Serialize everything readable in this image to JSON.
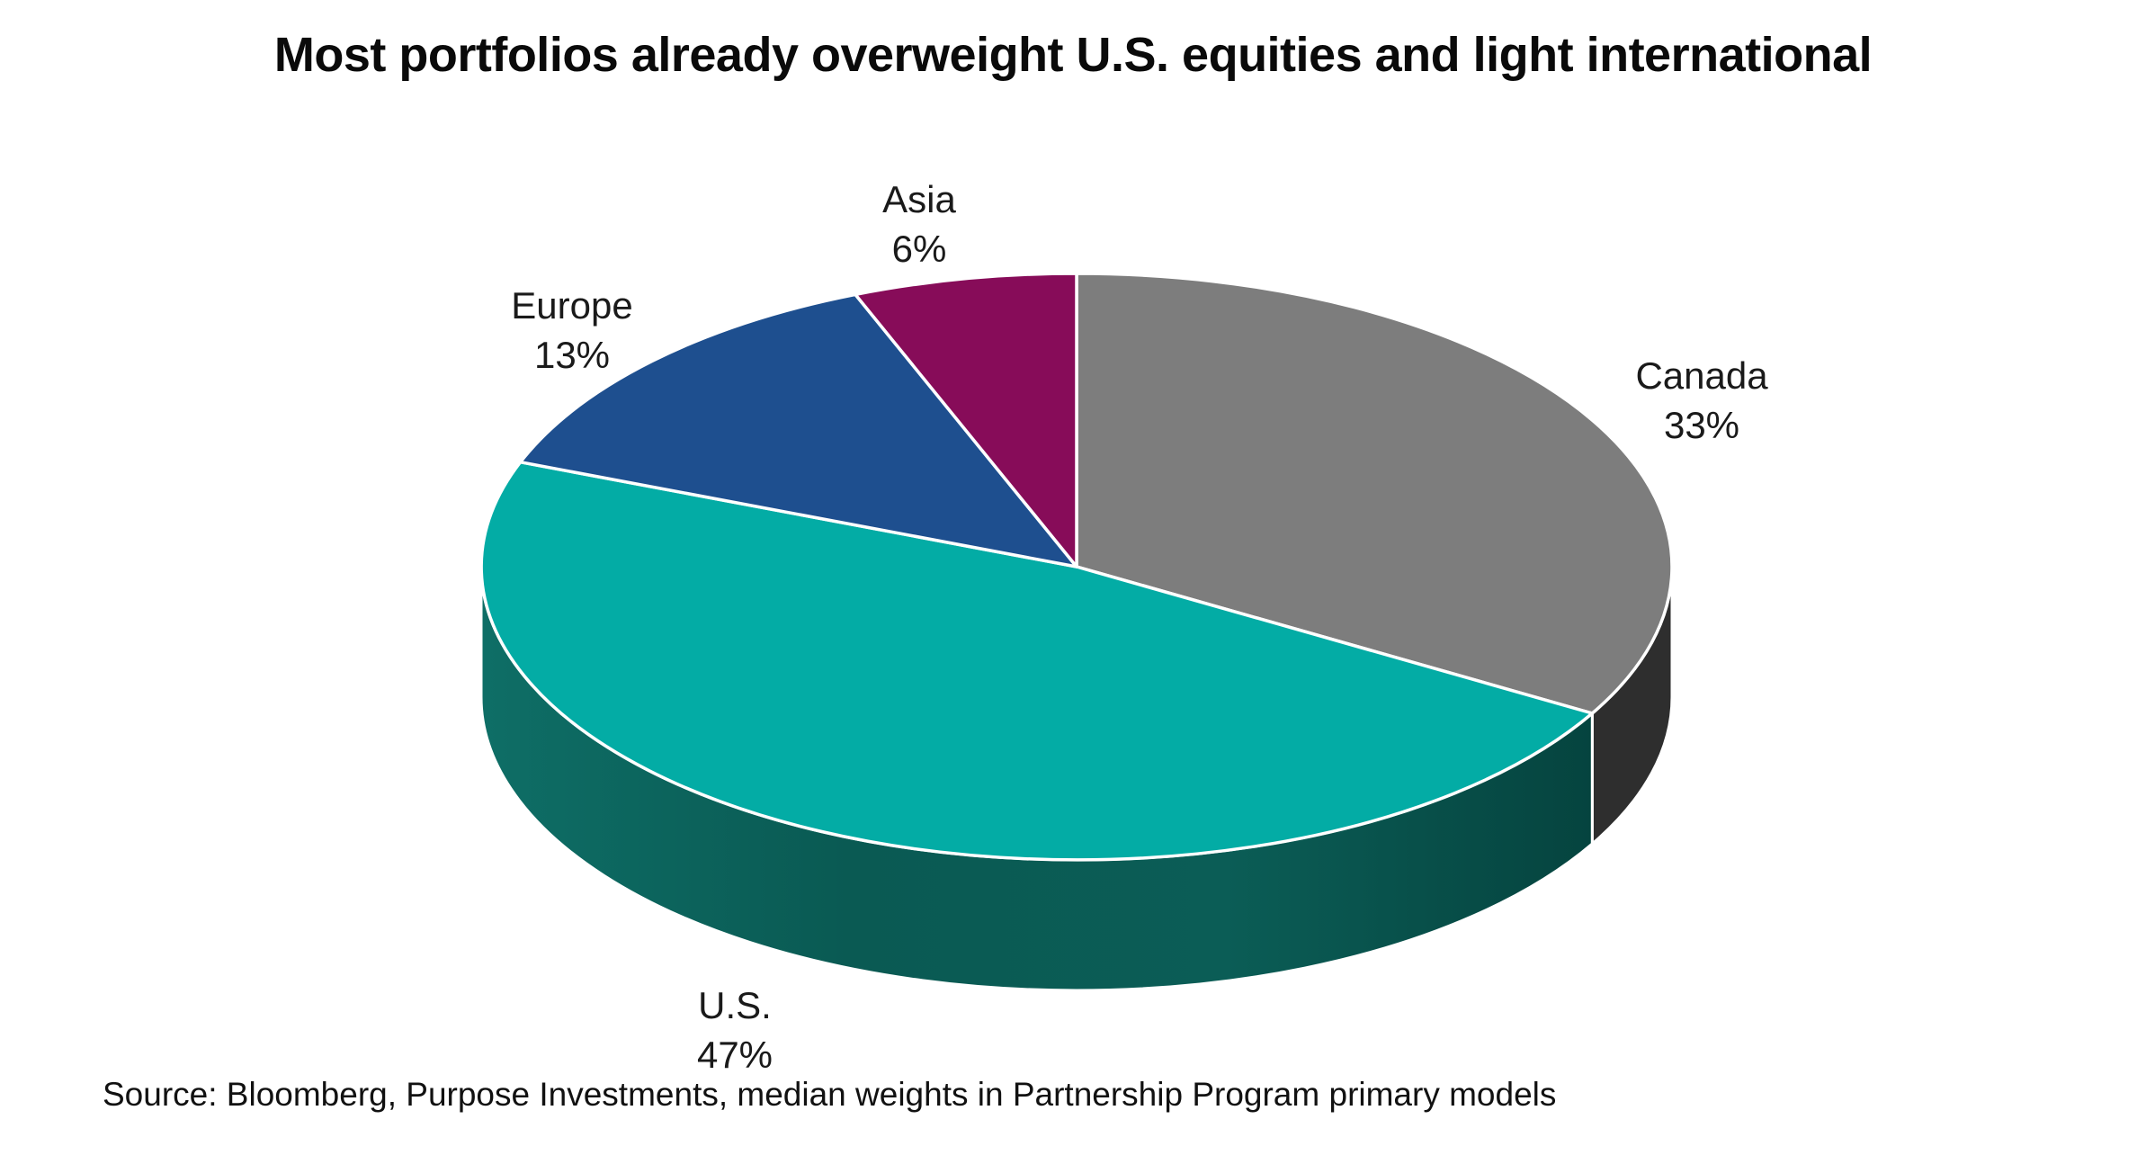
{
  "chart_data": {
    "type": "pie",
    "style": "3d-exploded-none",
    "title": "Most portfolios already overweight U.S. equities and light international",
    "source_note": "Source: Bloomberg, Purpose Investments, median weights in Partnership Program primary models",
    "start_angle_deg": 0,
    "direction": "clockwise",
    "legend": "none",
    "background_color": "#FFFFFF",
    "separator_color": "#FFFFFF",
    "label_color": "#1A1A1A",
    "title_color": "#0A0A0A",
    "slices": [
      {
        "label": "Canada",
        "value": 33,
        "pct_label": "33%",
        "color": "#7D7D7D",
        "side_color": "#2E2E2E"
      },
      {
        "label": "U.S.",
        "value": 47,
        "pct_label": "47%",
        "color": "#03ACA5",
        "side_gradient": [
          "#0E6E66",
          "#0A5A53",
          "#0B5D56",
          "#05443F"
        ]
      },
      {
        "label": "Europe",
        "value": 13,
        "pct_label": "13%",
        "color": "#1E4F8F"
      },
      {
        "label": "Asia",
        "value": 6,
        "pct_label": "6%",
        "color": "#870C59"
      }
    ]
  }
}
